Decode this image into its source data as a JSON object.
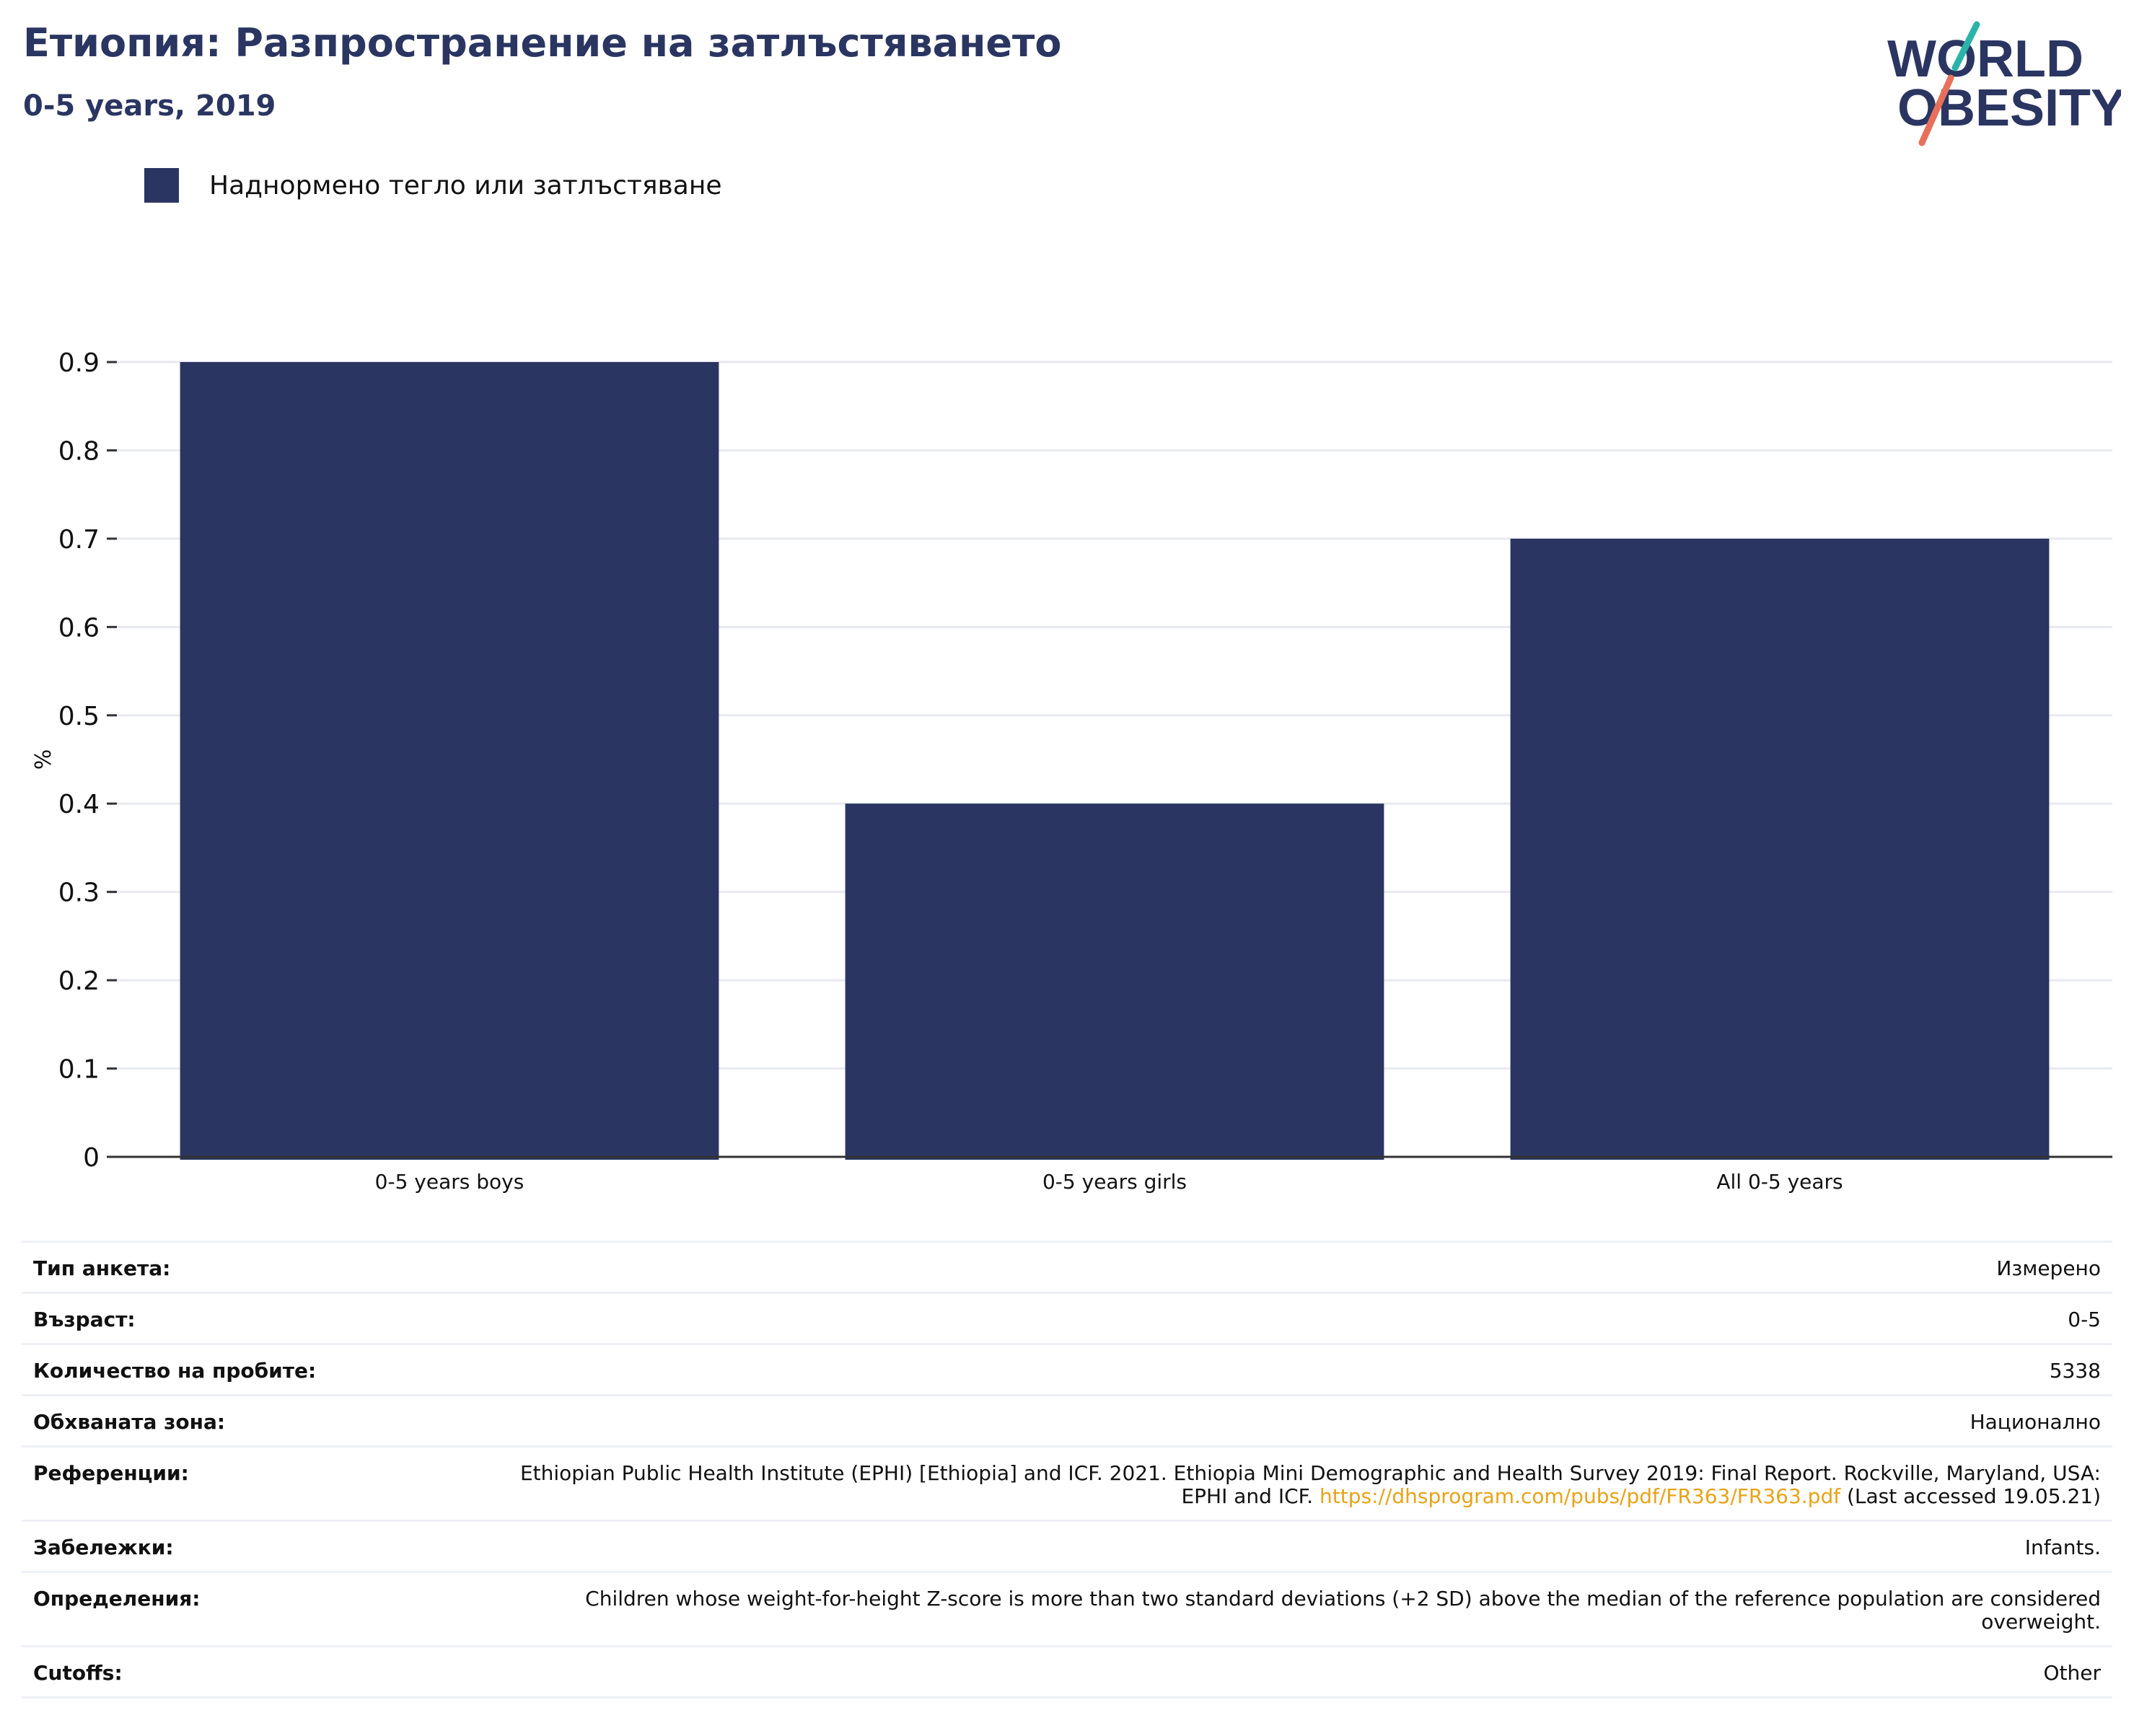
{
  "header": {
    "title": "Етиопия: Разпространение на затлъстяването",
    "subtitle": "0-5 years, 2019"
  },
  "logo": {
    "line1": "WORLD",
    "line2": "OBESITY",
    "colors": {
      "text": "#2a3561",
      "slash_top": "#2bb3a8",
      "slash_bottom": "#e7705a"
    }
  },
  "legend": {
    "label": "Наднормено тегло или затлъстяване",
    "color": "#2a3561"
  },
  "chart_data": {
    "type": "bar",
    "categories": [
      "0-5 years boys",
      "0-5 years girls",
      "All 0-5 years"
    ],
    "series": [
      {
        "name": "Наднормено тегло или затлъстяване",
        "values": [
          0.9,
          0.4,
          0.7
        ],
        "color": "#2a3561"
      }
    ],
    "ylabel": "%",
    "ylim": [
      0,
      0.9
    ],
    "yticks": [
      "0",
      "0.1",
      "0.2",
      "0.3",
      "0.4",
      "0.5",
      "0.6",
      "0.7",
      "0.8",
      "0.9"
    ],
    "grid": true,
    "legend_position": "top-left"
  },
  "details": {
    "survey_type": {
      "label": "Тип анкета:",
      "value": "Измерено"
    },
    "age": {
      "label": "Възраст:",
      "value": "0-5"
    },
    "sample_size": {
      "label": "Количество на пробите:",
      "value": "5338"
    },
    "area": {
      "label": "Обхваната зона:",
      "value": "Национално"
    },
    "references": {
      "label": "Референции:",
      "text": "Ethiopian Public Health Institute (EPHI) [Ethiopia] and ICF. 2021. Ethiopia Mini Demographic and Health Survey 2019: Final Report. Rockville, Maryland, USA: EPHI and ICF.",
      "link": "https://dhsprogram.com/pubs/pdf/FR363/FR363.pdf",
      "suffix": "(Last accessed 19.05.21)"
    },
    "notes": {
      "label": "Забележки:",
      "value": "Infants."
    },
    "definitions": {
      "label": "Определения:",
      "value": "Children whose weight-for-height Z-score is more than two standard deviations (+2 SD) above the median of the reference population are considered overweight."
    },
    "cutoffs": {
      "label": "Cutoffs:",
      "value": "Other"
    }
  }
}
